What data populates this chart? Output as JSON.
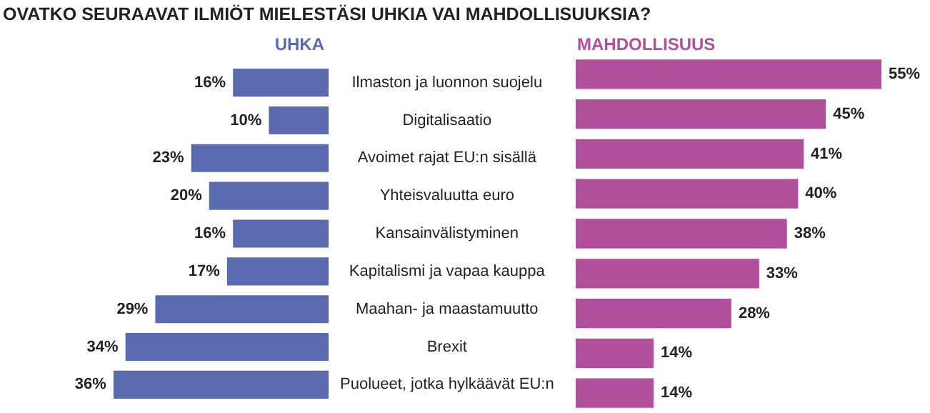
{
  "chart_data": [
    {
      "type": "bar",
      "orientation": "horizontal",
      "title": "OVATKO SEURAAVAT ILMIÖT MIELESTÄSI UHKIA VAI MAHDOLLISUUKSIA?",
      "categories": [
        "Ilmaston ja luonnon suojelu",
        "Digitalisaatio",
        "Avoimet rajat EU:n sisällä",
        "Yhteisvaluutta euro",
        "Kansainvälistyminen",
        "Kapitalismi ja vapaa kauppa",
        "Maahan- ja maastamuutto",
        "Brexit",
        "Puolueet, jotka hylkäävät EU:n"
      ],
      "tick_labels": "y",
      "series": [
        {
          "name": "UHKA",
          "color": "#5a6aae",
          "values": [
            16,
            10,
            23,
            20,
            16,
            17,
            29,
            34,
            36
          ],
          "value_labels": [
            "16%",
            "10%",
            "23%",
            "20%",
            "16%",
            "17%",
            "29%",
            "34%",
            "36%"
          ]
        }
      ]
    },
    {
      "type": "bar",
      "orientation": "horizontal",
      "categories": [
        null,
        null,
        null,
        null,
        null,
        null,
        null,
        null,
        null
      ],
      "tick_labels": false,
      "series": [
        {
          "name": "MAHDOLLISUUS",
          "color": "#b04f9b",
          "values": [
            55,
            45,
            41,
            40,
            38,
            33,
            28,
            14,
            14
          ],
          "value_labels": [
            "55%",
            "45%",
            "41%",
            "40%",
            "38%",
            "33%",
            "28%",
            "14%",
            "14%"
          ]
        }
      ]
    }
  ]
}
